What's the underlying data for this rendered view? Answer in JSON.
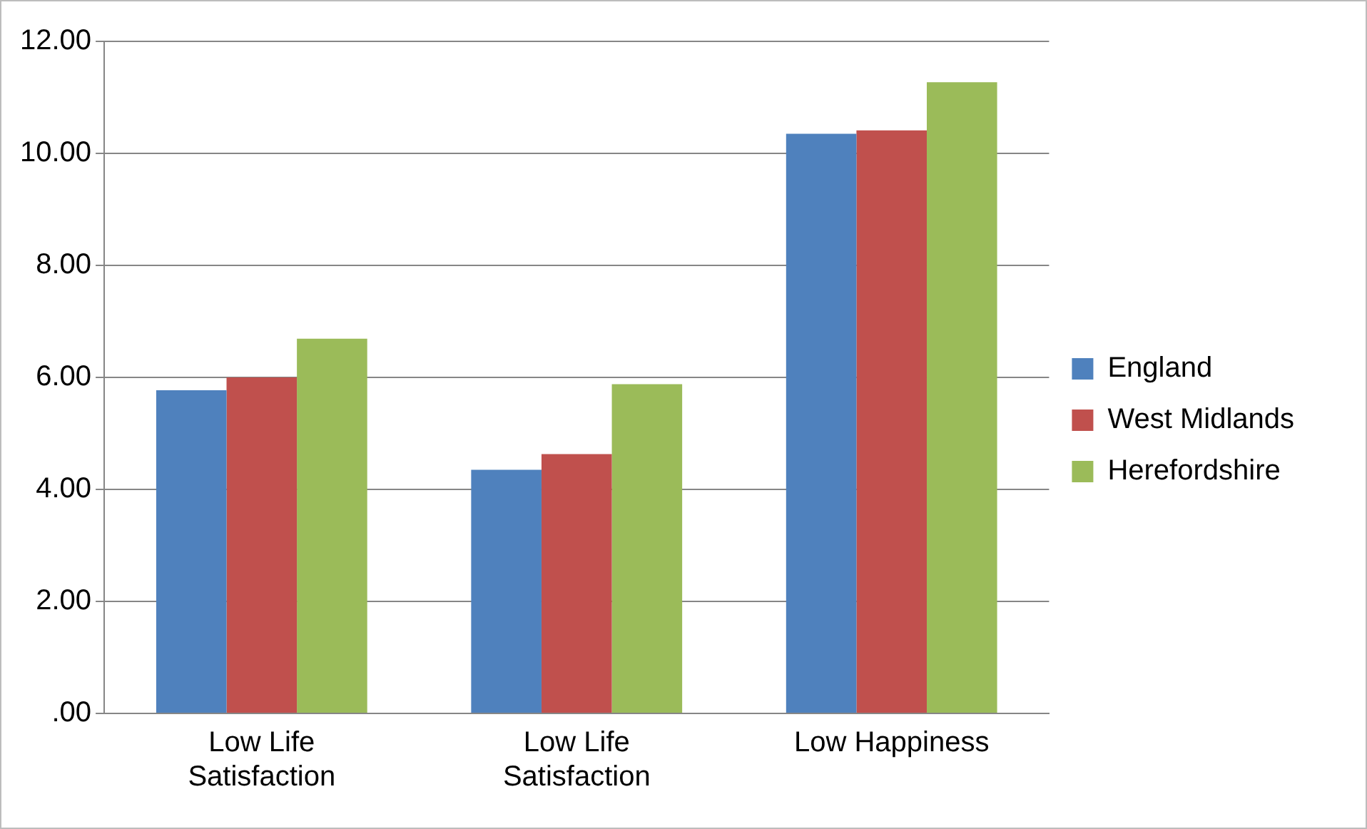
{
  "chart_data": {
    "type": "bar",
    "categories": [
      "Low Life Satisfaction",
      "Low Life Satisfaction",
      "Low Happiness"
    ],
    "series": [
      {
        "name": "England",
        "color": "#4f81bd",
        "values": [
          5.77,
          4.35,
          10.35
        ]
      },
      {
        "name": "West Midlands",
        "color": "#c0504d",
        "values": [
          6.0,
          4.63,
          10.41
        ]
      },
      {
        "name": "Herefordshire",
        "color": "#9bbb59",
        "values": [
          6.69,
          5.88,
          11.27
        ]
      }
    ],
    "ylim": [
      0,
      12
    ],
    "yticks": [
      {
        "value": 0,
        "label": ".00"
      },
      {
        "value": 2,
        "label": "2.00"
      },
      {
        "value": 4,
        "label": "4.00"
      },
      {
        "value": 6,
        "label": "6.00"
      },
      {
        "value": 8,
        "label": "8.00"
      },
      {
        "value": 10,
        "label": "10.00"
      },
      {
        "value": 12,
        "label": "12.00"
      }
    ],
    "grid": "y",
    "legend": "right"
  }
}
